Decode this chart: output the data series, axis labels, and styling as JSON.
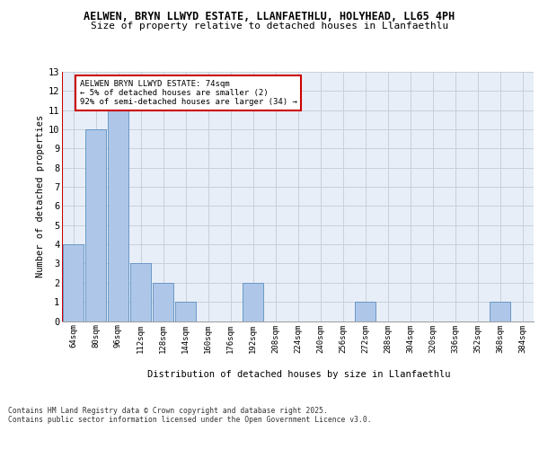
{
  "title1": "AELWEN, BRYN LLWYD ESTATE, LLANFAETHLU, HOLYHEAD, LL65 4PH",
  "title2": "Size of property relative to detached houses in Llanfaethlu",
  "xlabel": "Distribution of detached houses by size in Llanfaethlu",
  "ylabel": "Number of detached properties",
  "bins": [
    "64sqm",
    "80sqm",
    "96sqm",
    "112sqm",
    "128sqm",
    "144sqm",
    "160sqm",
    "176sqm",
    "192sqm",
    "208sqm",
    "224sqm",
    "240sqm",
    "256sqm",
    "272sqm",
    "288sqm",
    "304sqm",
    "320sqm",
    "336sqm",
    "352sqm",
    "368sqm",
    "384sqm"
  ],
  "counts": [
    4,
    10,
    11,
    3,
    2,
    1,
    0,
    0,
    2,
    0,
    0,
    0,
    0,
    1,
    0,
    0,
    0,
    0,
    0,
    1,
    0
  ],
  "bar_color": "#aec6e8",
  "bar_edge_color": "#5a8fc2",
  "annotation_text": "AELWEN BRYN LLWYD ESTATE: 74sqm\n← 5% of detached houses are smaller (2)\n92% of semi-detached houses are larger (34) →",
  "annotation_box_color": "#ffffff",
  "annotation_box_edge_color": "#cc0000",
  "vline_color": "#cc0000",
  "ylim": [
    0,
    13
  ],
  "yticks": [
    0,
    1,
    2,
    3,
    4,
    5,
    6,
    7,
    8,
    9,
    10,
    11,
    12,
    13
  ],
  "footer": "Contains HM Land Registry data © Crown copyright and database right 2025.\nContains public sector information licensed under the Open Government Licence v3.0.",
  "bg_color": "#e8eef7",
  "grid_color": "#c8d0dc"
}
